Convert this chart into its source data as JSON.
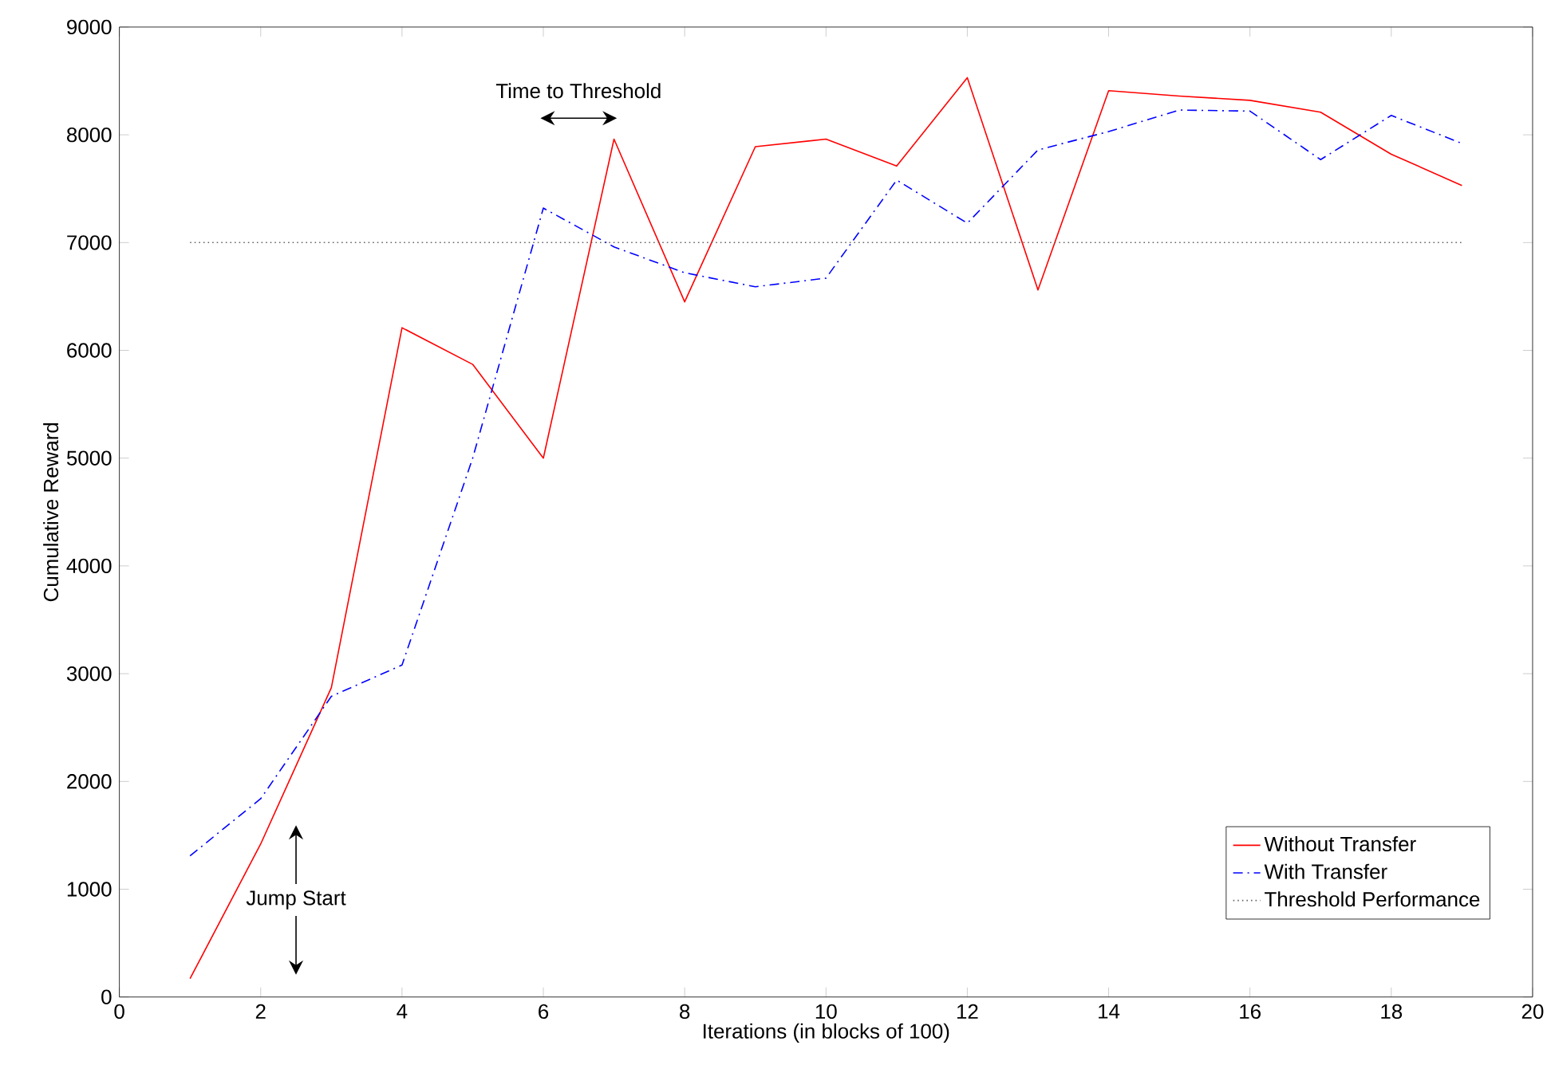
{
  "chart_data": {
    "type": "line",
    "xlabel": "Iterations (in blocks of 100)",
    "ylabel": "Cumulative Reward",
    "x": [
      1,
      2,
      3,
      4,
      5,
      6,
      7,
      8,
      9,
      10,
      11,
      12,
      13,
      14,
      15,
      16,
      17,
      18,
      19
    ],
    "series": [
      {
        "name": "Without Transfer",
        "color": "#ff0000",
        "line_style": "solid",
        "values": [
          170,
          1420,
          2870,
          6210,
          5870,
          5000,
          7960,
          6450,
          7890,
          7960,
          7710,
          8530,
          6560,
          8410,
          8360,
          8320,
          8210,
          7820,
          7530
        ]
      },
      {
        "name": "With Transfer",
        "color": "#0000ff",
        "line_style": "dashdotted",
        "values": [
          1310,
          1840,
          2790,
          3080,
          5000,
          7320,
          6960,
          6720,
          6590,
          6670,
          7580,
          7180,
          7860,
          8030,
          8230,
          8220,
          7770,
          8180,
          7920
        ]
      },
      {
        "name": "Threshold Performance",
        "color": "#666666",
        "line_style": "dotted",
        "x": [
          1,
          19
        ],
        "values": [
          7000,
          7000
        ]
      }
    ],
    "xlim": [
      0,
      20
    ],
    "xticks": [
      0,
      2,
      4,
      6,
      8,
      10,
      12,
      14,
      16,
      18,
      20
    ],
    "ylim": [
      0,
      9000
    ],
    "yticks": [
      0,
      1000,
      2000,
      3000,
      4000,
      5000,
      6000,
      7000,
      8000,
      9000
    ],
    "grid": false,
    "legend": "bottom right",
    "marker": "none",
    "annotations": [
      "Time to Threshold",
      "Jump Start"
    ]
  }
}
